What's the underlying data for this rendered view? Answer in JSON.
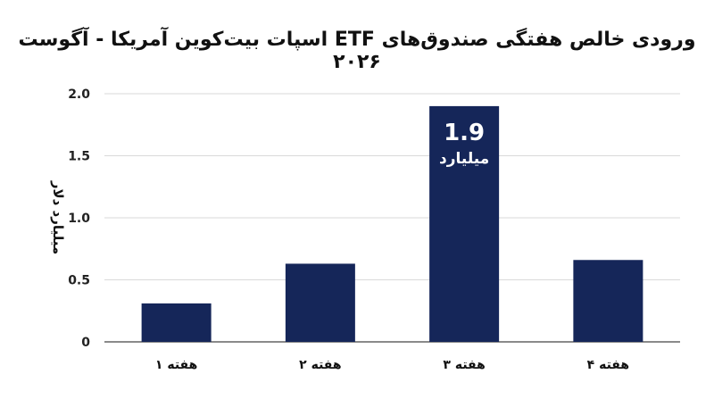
{
  "chart_data": {
    "type": "bar",
    "title": "ورودی خالص هفتگی صندوق‌های ETF اسپات بیت‌کوین آمریکا - آگوست ۲۰۲۶",
    "xlabel": "",
    "ylabel": "میلیارد دلار",
    "categories": [
      "هفته ۱",
      "هفته ۲",
      "هفته ۳",
      "هفته ۴"
    ],
    "values": [
      0.31,
      0.63,
      1.9,
      0.66
    ],
    "ylim": [
      0,
      2.0
    ],
    "yticks": [
      0,
      0.5,
      1.0,
      1.5,
      2.0
    ],
    "ytick_labels": [
      "0",
      "0.5",
      "1.0",
      "1.5",
      "2.0"
    ],
    "grid": true,
    "bar_color": "#152659",
    "annotation": {
      "category_index": 2,
      "value_text": "1.9",
      "unit_text": "میلیارد"
    }
  }
}
